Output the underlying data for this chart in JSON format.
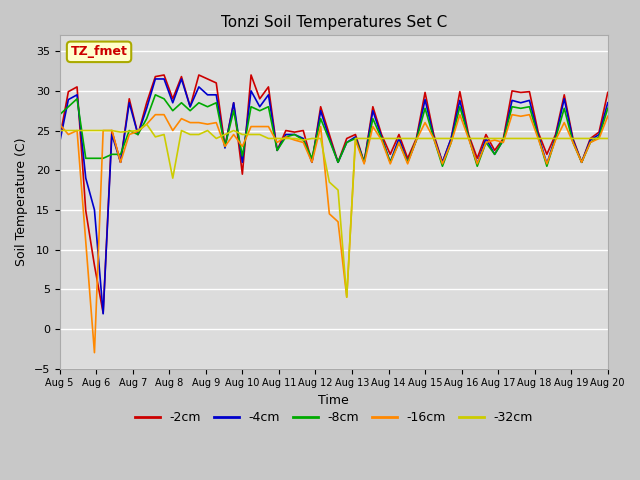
{
  "title": "Tonzi Soil Temperatures Set C",
  "xlabel": "Time",
  "ylabel": "Soil Temperature (C)",
  "ylim": [
    -5,
    37
  ],
  "yticks": [
    -5,
    0,
    5,
    10,
    15,
    20,
    25,
    30,
    35
  ],
  "xtick_labels": [
    "Aug 5",
    "Aug 6",
    "Aug 7",
    "Aug 8",
    "Aug 9",
    "Aug 10",
    "Aug 11",
    "Aug 12",
    "Aug 13",
    "Aug 14",
    "Aug 15",
    "Aug 16",
    "Aug 17",
    "Aug 18",
    "Aug 19",
    "Aug 20"
  ],
  "legend_label": "TZ_fmet",
  "series_colors": [
    "#cc0000",
    "#0000cc",
    "#00aa00",
    "#ff8800",
    "#cccc00"
  ],
  "series_names": [
    "-2cm",
    "-4cm",
    "-8cm",
    "-16cm",
    "-32cm"
  ],
  "background_color": "#dcdcdc",
  "grid_color": "#ffffff",
  "m2cm": [
    24.0,
    29.9,
    30.5,
    14.9,
    8.0,
    2.0,
    25.0,
    21.0,
    29.0,
    24.5,
    28.5,
    31.8,
    32.0,
    29.0,
    31.8,
    28.0,
    32.0,
    31.5,
    31.0,
    23.0,
    28.5,
    19.5,
    32.0,
    29.0,
    30.5,
    22.5,
    25.0,
    24.8,
    25.0,
    21.0,
    28.0,
    24.5,
    21.0,
    24.0,
    24.5,
    21.0,
    28.0,
    24.5,
    22.0,
    24.5,
    21.5,
    24.0,
    29.8,
    24.5,
    21.0,
    24.0,
    29.9,
    24.5,
    21.5,
    24.5,
    22.5,
    24.0,
    30.0,
    29.8,
    29.9,
    24.8,
    22.0,
    24.5,
    29.5,
    24.0,
    21.0,
    24.0,
    24.8,
    29.8
  ],
  "m4cm": [
    23.5,
    28.9,
    29.5,
    19.0,
    15.0,
    1.9,
    24.5,
    21.0,
    28.5,
    24.5,
    27.8,
    31.5,
    31.5,
    28.5,
    31.5,
    28.0,
    30.5,
    29.5,
    29.5,
    22.8,
    28.5,
    21.0,
    30.0,
    28.0,
    29.5,
    22.5,
    24.5,
    24.5,
    24.0,
    21.0,
    27.5,
    24.0,
    21.0,
    23.5,
    24.2,
    21.0,
    27.5,
    24.2,
    21.0,
    24.0,
    21.0,
    23.8,
    28.9,
    24.2,
    21.0,
    24.0,
    28.8,
    24.2,
    20.8,
    24.0,
    22.0,
    23.8,
    28.8,
    28.5,
    28.8,
    24.5,
    20.8,
    24.2,
    29.0,
    23.8,
    21.0,
    23.8,
    24.5,
    28.5
  ],
  "m8cm": [
    27.0,
    28.0,
    29.0,
    21.5,
    21.5,
    21.5,
    22.0,
    22.0,
    25.0,
    24.5,
    26.5,
    29.5,
    29.0,
    27.5,
    28.5,
    27.5,
    28.5,
    28.0,
    28.5,
    23.0,
    27.5,
    21.8,
    28.0,
    27.5,
    28.0,
    22.5,
    24.2,
    24.5,
    23.8,
    21.5,
    26.5,
    23.8,
    21.0,
    23.5,
    24.0,
    21.0,
    26.5,
    24.0,
    21.0,
    23.5,
    21.0,
    23.8,
    27.8,
    24.0,
    20.5,
    23.5,
    28.0,
    24.2,
    20.5,
    23.5,
    22.0,
    23.8,
    28.0,
    27.8,
    28.0,
    24.2,
    20.5,
    24.0,
    27.8,
    23.5,
    21.0,
    23.5,
    24.2,
    27.8
  ],
  "m16cm": [
    25.8,
    24.5,
    25.0,
    11.0,
    -3.0,
    25.0,
    25.0,
    21.0,
    24.5,
    24.9,
    25.8,
    27.0,
    27.0,
    25.0,
    26.5,
    26.0,
    26.0,
    25.8,
    26.0,
    23.0,
    24.5,
    23.0,
    25.5,
    25.5,
    25.5,
    23.5,
    24.2,
    23.8,
    23.5,
    21.0,
    25.5,
    14.5,
    13.5,
    4.0,
    23.8,
    20.8,
    25.5,
    23.8,
    20.8,
    23.5,
    20.8,
    23.8,
    26.0,
    24.0,
    20.8,
    23.5,
    27.0,
    24.0,
    20.8,
    23.5,
    23.8,
    23.5,
    27.0,
    26.8,
    27.0,
    24.0,
    20.8,
    23.8,
    26.0,
    23.5,
    21.0,
    23.5,
    24.0,
    26.8
  ],
  "m32cm": [
    25.0,
    25.0,
    25.0,
    25.0,
    25.0,
    25.0,
    25.0,
    24.8,
    24.9,
    25.0,
    25.8,
    24.2,
    24.5,
    19.0,
    25.0,
    24.5,
    24.5,
    25.0,
    24.0,
    24.5,
    25.0,
    24.5,
    24.5,
    24.5,
    24.0,
    24.0,
    24.0,
    24.0,
    23.8,
    24.0,
    24.0,
    18.5,
    17.5,
    4.0,
    24.0,
    24.0,
    24.0,
    24.0,
    24.0,
    24.0,
    24.0,
    24.0,
    24.0,
    24.0,
    24.0,
    24.0,
    24.0,
    24.0,
    24.0,
    24.0,
    24.0,
    24.0,
    24.0,
    24.0,
    24.0,
    24.0,
    24.0,
    24.0,
    24.0,
    24.0,
    24.0,
    24.0,
    24.0,
    24.0
  ]
}
